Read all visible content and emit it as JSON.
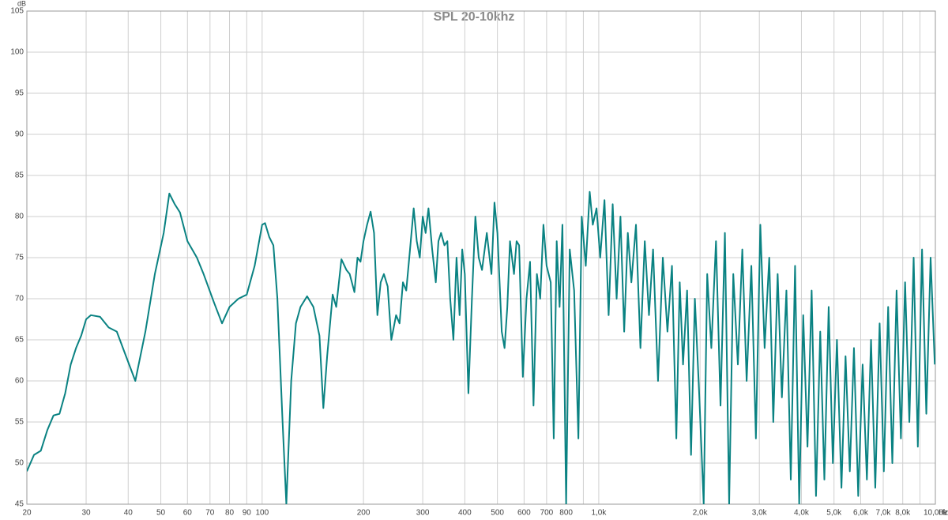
{
  "chart_data": {
    "type": "line",
    "title": "SPL 20-10khz",
    "y_label": "dB",
    "x_label": "Hz",
    "log_x": true,
    "grid": true,
    "color": "#0a8282",
    "xlim": [
      20,
      10000
    ],
    "ylim": [
      45,
      105
    ],
    "yticks": [
      45,
      50,
      55,
      60,
      65,
      70,
      75,
      80,
      85,
      90,
      95,
      100,
      105
    ],
    "xticks": [
      20,
      30,
      40,
      50,
      60,
      70,
      80,
      90,
      100,
      200,
      300,
      400,
      500,
      600,
      700,
      800,
      {
        "value": 900,
        "label": null
      },
      {
        "value": 1000,
        "label": "1,0k"
      },
      {
        "value": 2000,
        "label": "2,0k"
      },
      {
        "value": 3000,
        "label": "3,0k"
      },
      {
        "value": 4000,
        "label": "4,0k"
      },
      {
        "value": 5000,
        "label": "5,0k"
      },
      {
        "value": 6000,
        "label": "6,0k"
      },
      {
        "value": 7000,
        "label": "7,0k"
      },
      {
        "value": 8000,
        "label": "8,0k"
      },
      {
        "value": 9000,
        "label": null
      },
      {
        "value": 10000,
        "label": "10,00k"
      }
    ],
    "x": [
      20,
      21,
      22,
      23,
      24,
      25,
      26,
      27,
      28,
      29,
      30,
      31,
      33,
      35,
      37,
      39,
      42,
      45,
      48,
      51,
      53,
      55,
      57,
      60,
      64,
      67,
      72,
      76,
      80,
      85,
      90,
      95,
      100,
      102,
      105,
      108,
      111,
      115,
      118,
      122,
      126,
      130,
      136,
      142,
      148,
      152,
      156,
      162,
      166,
      172,
      178,
      182,
      188,
      192,
      196,
      200,
      205,
      210,
      215,
      220,
      225,
      230,
      236,
      242,
      250,
      256,
      262,
      268,
      275,
      282,
      288,
      294,
      300,
      306,
      312,
      320,
      328,
      334,
      340,
      348,
      355,
      362,
      370,
      378,
      386,
      393,
      400,
      410,
      420,
      430,
      440,
      450,
      465,
      480,
      490,
      500,
      515,
      525,
      535,
      545,
      560,
      570,
      580,
      595,
      610,
      625,
      640,
      655,
      670,
      685,
      700,
      720,
      735,
      750,
      765,
      780,
      800,
      820,
      845,
      870,
      890,
      915,
      940,
      960,
      985,
      1010,
      1040,
      1070,
      1100,
      1130,
      1160,
      1190,
      1220,
      1250,
      1290,
      1330,
      1370,
      1410,
      1450,
      1500,
      1550,
      1600,
      1650,
      1700,
      1740,
      1780,
      1830,
      1880,
      1930,
      1990,
      2050,
      2100,
      2160,
      2230,
      2300,
      2370,
      2440,
      2510,
      2590,
      2670,
      2750,
      2840,
      2930,
      3020,
      3110,
      3210,
      3300,
      3400,
      3500,
      3610,
      3720,
      3830,
      3940,
      4050,
      4170,
      4290,
      4420,
      4550,
      4680,
      4820,
      4960,
      5100,
      5260,
      5410,
      5570,
      5730,
      5900,
      6080,
      6260,
      6440,
      6630,
      6830,
      7030,
      7240,
      7450,
      7670,
      7900,
      8130,
      8370,
      8620,
      8870,
      9130,
      9400,
      9680,
      9960
    ],
    "values": [
      49,
      51,
      51.5,
      54,
      55.8,
      56,
      58.5,
      62,
      64,
      65.5,
      67.5,
      68,
      67.8,
      66.5,
      66,
      63.5,
      60,
      66,
      73,
      78,
      82.8,
      81.5,
      80.5,
      77,
      75,
      73,
      69.5,
      67,
      69,
      70,
      70.5,
      74,
      79,
      79.2,
      77.5,
      76.5,
      70,
      55,
      45,
      60,
      67,
      69,
      70.3,
      69,
      65.5,
      56.7,
      63,
      70.5,
      69,
      74.8,
      73.5,
      73,
      70.8,
      75,
      74.5,
      77,
      79,
      80.6,
      78,
      68,
      72,
      73,
      71.5,
      65,
      68,
      67,
      72,
      71,
      76,
      81,
      77,
      75,
      80,
      78,
      81,
      76,
      72,
      77,
      78,
      76.5,
      77,
      70,
      65,
      75,
      68,
      76,
      73,
      58.5,
      70,
      80,
      75,
      73.5,
      78,
      73,
      81.7,
      78,
      66,
      64,
      69,
      77,
      73,
      77,
      76.5,
      60.5,
      70,
      74.5,
      57,
      73,
      70,
      79,
      74,
      72,
      53,
      77,
      69,
      79,
      45,
      76,
      71,
      53,
      80,
      74,
      83,
      79,
      81,
      75,
      82,
      68,
      81.5,
      70,
      80,
      66,
      78,
      72,
      79,
      64,
      77,
      68,
      76,
      60,
      75,
      66,
      74,
      53,
      72,
      62,
      71,
      51,
      70,
      58,
      45,
      73,
      64,
      77,
      57,
      78,
      45,
      73,
      62,
      76,
      60,
      74,
      53,
      79,
      64,
      75,
      55,
      73,
      58,
      71,
      48,
      74,
      45,
      68,
      52,
      71,
      46,
      66,
      48,
      69,
      50,
      65,
      47,
      63,
      49,
      64,
      46,
      62,
      48,
      65,
      47,
      67,
      49,
      69,
      50,
      71,
      53,
      72,
      55,
      75,
      52,
      76,
      56,
      75,
      62
    ]
  }
}
